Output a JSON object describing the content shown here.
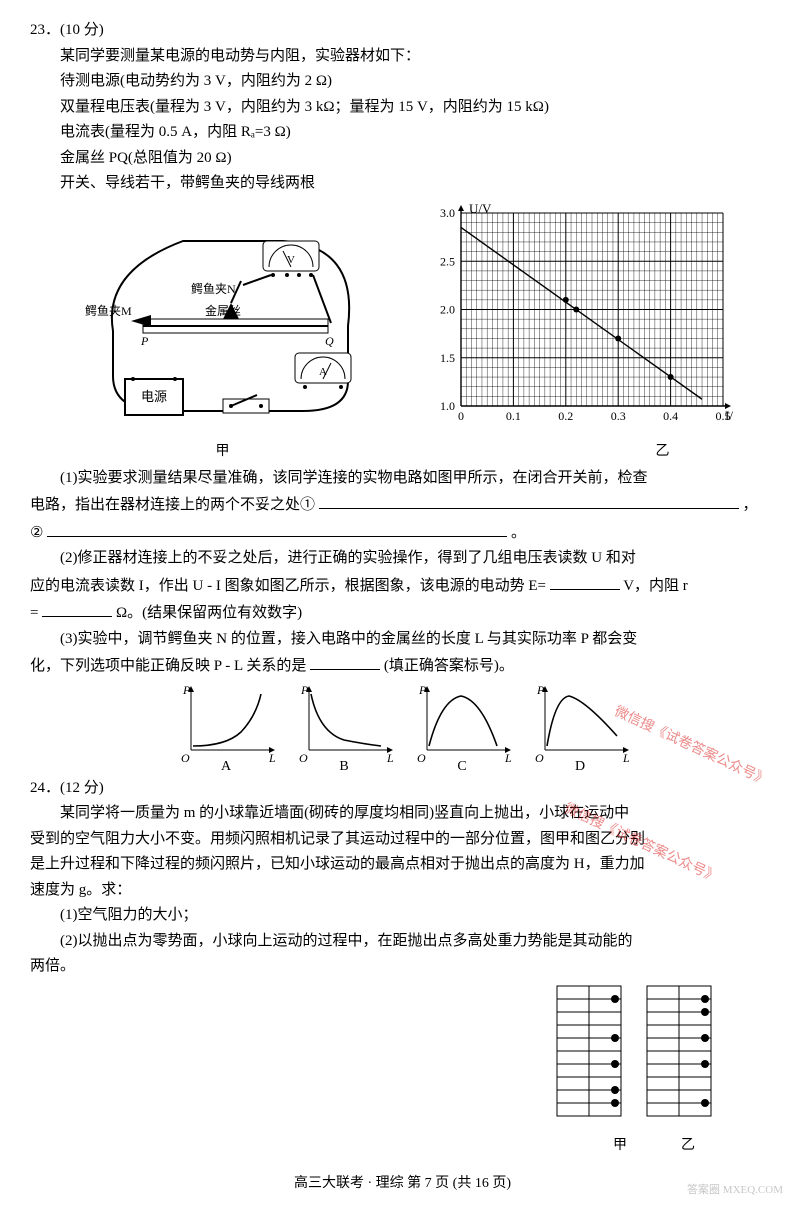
{
  "q23": {
    "number": "23．(10 分)",
    "lines": [
      "某同学要测量某电源的电动势与内阻，实验器材如下：",
      "待测电源(电动势约为 3 V，内阻约为 2 Ω)",
      "双量程电压表(量程为 3 V，内阻约为 3 kΩ；量程为 15 V，内阻约为 15 kΩ)",
      "电流表(量程为 0.5 A，内阻 Rₐ=3 Ω)",
      "金属丝 PQ(总阻值为 20 Ω)",
      "开关、导线若干，带鳄鱼夹的导线两根"
    ],
    "circuit_labels": {
      "clipM": "鳄鱼夹M",
      "clipN": "鳄鱼夹N",
      "wire": "金属丝",
      "battery": "电源",
      "P": "P",
      "Q": "Q",
      "V": "V",
      "A": "A"
    },
    "circuit_caption": "甲",
    "graph": {
      "xlabel": "I/A",
      "ylabel": "U/V",
      "xlim": [
        0,
        0.5
      ],
      "ylim": [
        1.0,
        3.0
      ],
      "xticks": [
        0,
        0.1,
        0.2,
        0.3,
        0.4,
        0.5
      ],
      "yticks": [
        1.0,
        1.5,
        2.0,
        2.5,
        3.0
      ],
      "minor_div_x": 50,
      "minor_div_y": 20,
      "points": [
        [
          0.2,
          2.1
        ],
        [
          0.22,
          2.0
        ],
        [
          0.3,
          1.7
        ],
        [
          0.4,
          1.3
        ]
      ],
      "line": {
        "x1": 0,
        "y1": 2.85,
        "x2": 0.46,
        "y2": 1.07
      },
      "axis_color": "#000",
      "grid_color": "#000",
      "point_color": "#000",
      "bg": "#ffffff",
      "line_width": 1,
      "caption": "乙"
    },
    "p1_a": "(1)实验要求测量结果尽量准确，该同学连接的实物电路如图甲所示，在闭合开关前，检查",
    "p1_b": "电路，指出在器材连接上的两个不妥之处①",
    "p1_c": "，",
    "p1_d": "②",
    "p1_e": "。",
    "p2_a": "(2)修正器材连接上的不妥之处后，进行正确的实验操作，得到了几组电压表读数 U 和对",
    "p2_b": "应的电流表读数 I，作出 U - I 图象如图乙所示，根据图象，该电源的电动势 E=",
    "p2_c": "V，内阻 r",
    "p2_d": "=",
    "p2_e": "Ω。(结果保留两位有效数字)",
    "p3_a": "(3)实验中，调节鳄鱼夹 N 的位置，接入电路中的金属丝的长度 L 与其实际功率 P 都会变",
    "p3_b": "化，下列选项中能正确反映 P - L 关系的是",
    "p3_c": "(填正确答案标号)。",
    "options": {
      "axes": {
        "x": "L",
        "y": "P",
        "origin": "O"
      },
      "labels": [
        "A",
        "B",
        "C",
        "D"
      ],
      "colors": {
        "stroke": "#000",
        "bg": "#fff"
      }
    }
  },
  "q24": {
    "number": "24．(12 分)",
    "lines_a": [
      "某同学将一质量为 m 的小球靠近墙面(砌砖的厚度均相同)竖直向上抛出，小球在运动中"
    ],
    "lines_b": [
      "受到的空气阻力大小不变。用频闪照相机记录了其运动过程中的一部分位置，图甲和图乙分别",
      "是上升过程和下降过程的频闪照片，已知小球运动的最高点相对于抛出点的高度为 H，重力加",
      "速度为 g。求：",
      "(1)空气阻力的大小；",
      "(2)以抛出点为零势面，小球向上运动的过程中，在距抛出点多高处重力势能是其动能的"
    ],
    "lines_c": "两倍。",
    "wall": {
      "caption_left": "甲",
      "caption_right": "乙",
      "rows": 10,
      "brick_color": "#000",
      "ball_color": "#000",
      "left_balls_row": [
        1,
        4,
        6,
        8,
        9
      ],
      "right_balls_row": [
        1,
        2,
        4,
        6,
        9
      ]
    }
  },
  "footer": "高三大联考 · 理综  第 7 页  (共 16 页)",
  "watermarks": [
    "微信搜《试卷答案公众号》",
    "微信搜《试卷答案公众号》"
  ],
  "corner": "答案圈\nMXEQ.COM"
}
